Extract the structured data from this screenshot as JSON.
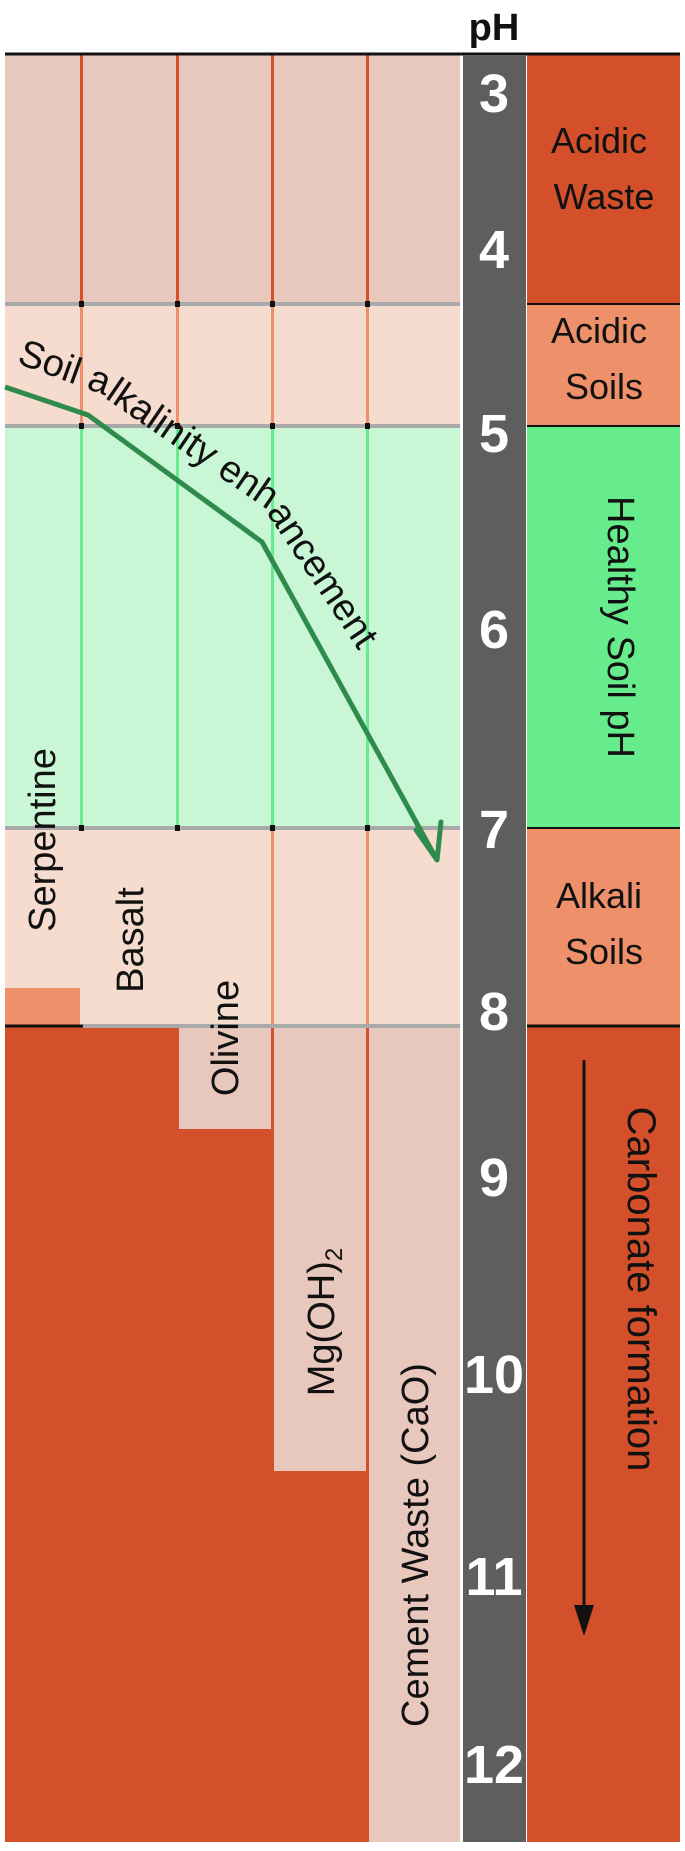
{
  "axis": {
    "title": "pH",
    "ticks": [
      "3",
      "4",
      "5",
      "6",
      "7",
      "8",
      "9",
      "10",
      "11",
      "12"
    ]
  },
  "zones": {
    "acidic_waste": "Acidic Waste",
    "acidic_soils": "Acidic Soils",
    "healthy": "Healthy Soil pH",
    "alkali_soils": "Alkali Soils",
    "carbonate": "Carbonate formation"
  },
  "materials": {
    "serpentine": "Serpentine",
    "basalt": "Basalt",
    "olivine": "Olivine",
    "mgoh2": "Mg(OH)",
    "mgoh2_sub": "2",
    "cement": "Cement Waste (CaO)"
  },
  "annotations": {
    "enhancement": "Soil alkalinity enhancement"
  },
  "colors": {
    "acidic_waste": "#d3502b",
    "acidic_soils": "#ee916a",
    "healthy": "#66ec8c",
    "alkali_soils": "#ee916a",
    "carbonate": "#d3502b",
    "bar": "#5e5e5e",
    "arrow_green": "#2e8b4c",
    "pale_waste": "#e8c7bc",
    "pale_soil": "#f5dccf",
    "pale_healthy": "#c9f7d6"
  }
}
